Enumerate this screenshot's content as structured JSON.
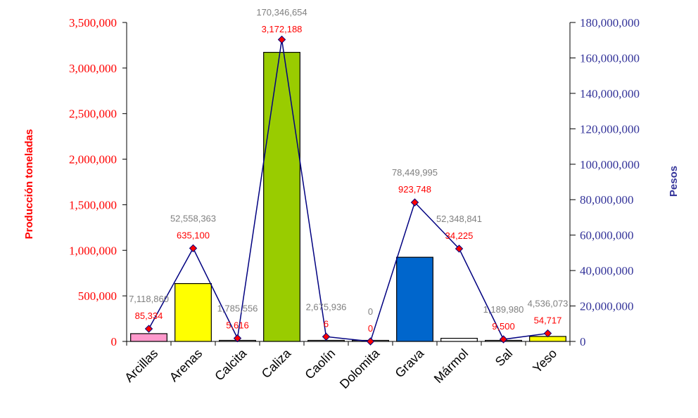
{
  "chart_data": {
    "type": "bar",
    "categories": [
      "Arcillas",
      "Arenas",
      "Calcita",
      "Caliza",
      "Caolín",
      "Dolomita",
      "Grava",
      "Mármol",
      "Sal",
      "Yeso"
    ],
    "ylabel": "Producción toneladas",
    "y2label": "Pesos",
    "ylim": [
      0,
      3500000
    ],
    "y2lim": [
      0,
      180000000
    ],
    "y_ticks": [
      "0",
      "500,000",
      "1,000,000",
      "1,500,000",
      "2,000,000",
      "2,500,000",
      "3,000,000",
      "3,500,000"
    ],
    "y2_ticks": [
      "0",
      "20,000,000",
      "40,000,000",
      "60,000,000",
      "80,000,000",
      "100,000,000",
      "120,000,000",
      "140,000,000",
      "160,000,000",
      "180,000,000"
    ],
    "series": [
      {
        "type": "bar",
        "axis": "left",
        "values": [
          85334,
          635100,
          5616,
          3172188,
          6,
          0,
          923748,
          34225,
          9500,
          54717
        ],
        "labels": [
          "85,334",
          "635,100",
          "5,616",
          "3,172,188",
          "6",
          "0",
          "923,748",
          "34,225",
          "9,500",
          "54,717"
        ],
        "colors": [
          "#ff99cc",
          "#ffff00",
          "#ffffff",
          "#99cc00",
          "#ffffff",
          "#ffffff",
          "#0066cc",
          "#ffffff",
          "#ffffff",
          "#ffff00"
        ]
      },
      {
        "type": "line",
        "axis": "right",
        "values": [
          7118860,
          52558363,
          1785556,
          170346654,
          2675936,
          0,
          78449995,
          52348841,
          1189980,
          4536073
        ],
        "labels": [
          "7,118,860",
          "52,558,363",
          "1,785,556",
          "170,346,654",
          "2,675,936",
          "0",
          "78,449,995",
          "52,348,841",
          "1,189,980",
          "4,536,073"
        ],
        "line_color": "#000080",
        "marker_color": "#ff0000"
      }
    ],
    "colors": {
      "left_axis_text": "#ff0000",
      "right_axis_text": "#333399"
    }
  }
}
